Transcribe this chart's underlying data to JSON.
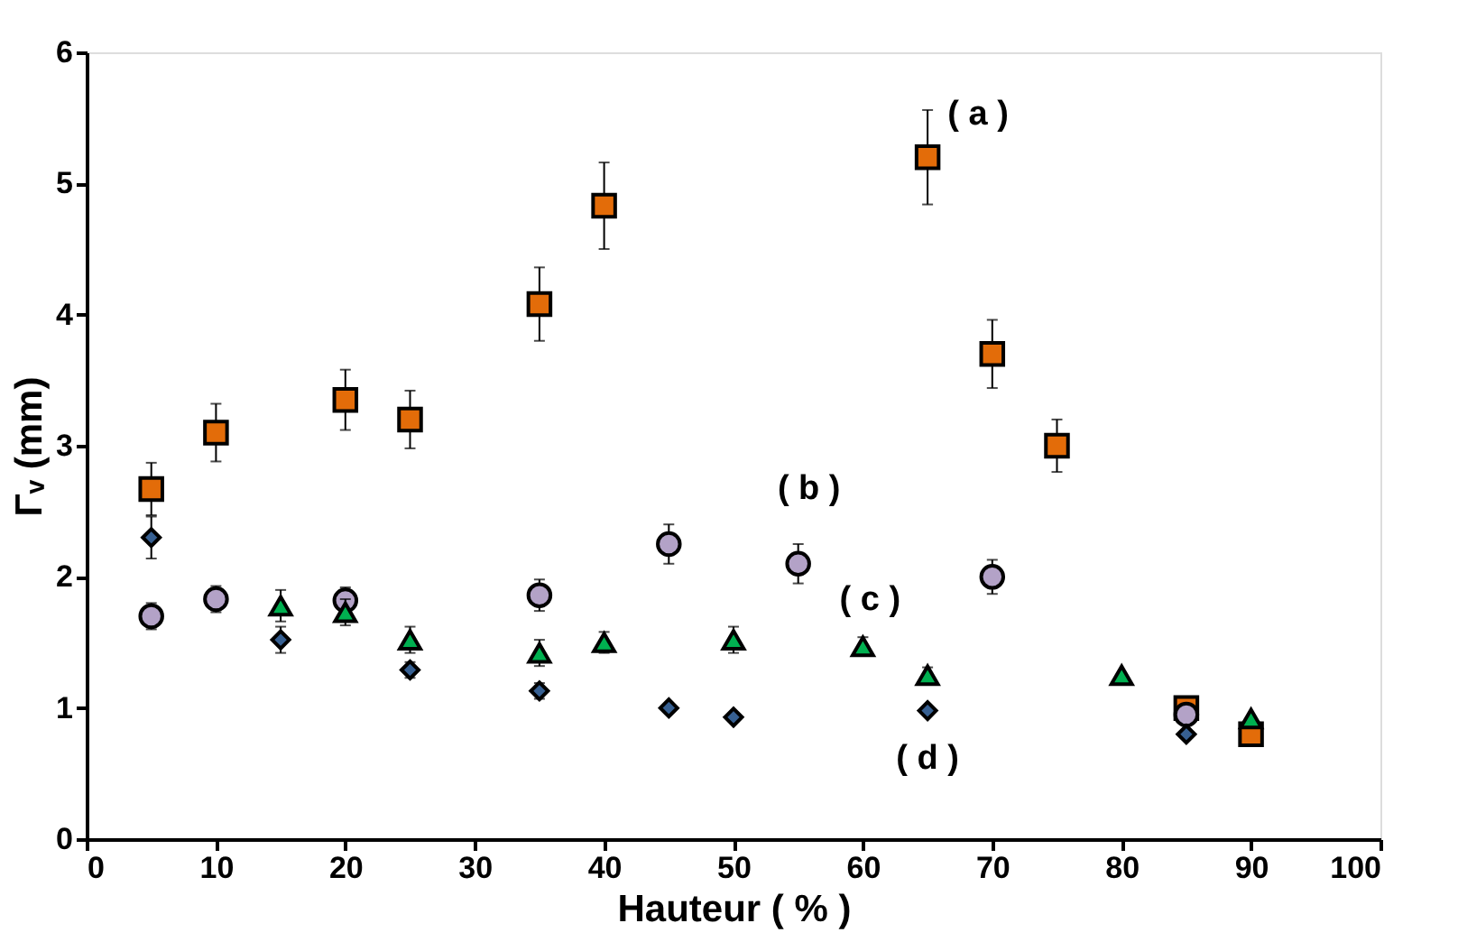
{
  "chart_data": {
    "type": "scatter",
    "xlabel": "Hauteur ( % )",
    "ylabel": "Γᵥ (mm)",
    "xlim": [
      0,
      100
    ],
    "xticks": [
      0,
      10,
      20,
      30,
      40,
      50,
      60,
      70,
      80,
      90,
      100
    ],
    "ylim": [
      0,
      6
    ],
    "yticks": [
      0,
      1,
      2,
      3,
      4,
      5,
      6
    ],
    "grid": false,
    "series": [
      {
        "marker": "square",
        "color": "#e36c09",
        "x": [
          5,
          10,
          20,
          25,
          35,
          40,
          65,
          70,
          75,
          85,
          90
        ],
        "values": [
          2.67,
          3.1,
          3.35,
          3.2,
          4.08,
          4.83,
          5.2,
          3.7,
          3.0,
          1.0,
          0.8
        ],
        "errors": [
          0.2,
          0.22,
          0.23,
          0.22,
          0.28,
          0.33,
          0.36,
          0.26,
          0.2,
          null,
          null
        ]
      },
      {
        "marker": "circle",
        "color": "#b3a2c7",
        "x": [
          5,
          10,
          20,
          35,
          45,
          55,
          70,
          85
        ],
        "values": [
          1.7,
          1.83,
          1.82,
          1.86,
          2.25,
          2.1,
          2.0,
          0.95
        ],
        "errors": [
          0.1,
          0.1,
          0.1,
          0.12,
          0.15,
          0.15,
          0.13,
          null
        ]
      },
      {
        "marker": "triangle",
        "color": "#00b050",
        "x": [
          15,
          20,
          25,
          35,
          40,
          50,
          60,
          65,
          80,
          90
        ],
        "values": [
          1.78,
          1.73,
          1.52,
          1.42,
          1.5,
          1.52,
          1.47,
          1.25,
          1.25,
          0.92
        ],
        "errors": [
          0.12,
          0.1,
          0.1,
          0.1,
          0.08,
          0.1,
          0.07,
          0.06,
          null,
          null
        ]
      },
      {
        "marker": "diamond",
        "color": "#376092",
        "x": [
          5,
          15,
          25,
          35,
          45,
          50,
          65,
          85
        ],
        "values": [
          2.3,
          1.52,
          1.29,
          1.13,
          1.0,
          0.93,
          0.98,
          0.8
        ],
        "errors": [
          0.16,
          0.1,
          0.06,
          0.06,
          null,
          null,
          null,
          null
        ]
      }
    ],
    "annotations": [
      {
        "text": "( a )",
        "x": 65,
        "y": 5.2
      },
      {
        "text": "( b )",
        "x": 55,
        "y": 2.1
      },
      {
        "text": "( c )",
        "x": 60,
        "y": 1.47
      },
      {
        "text": "( d )",
        "x": 65,
        "y": 0.98
      }
    ]
  }
}
